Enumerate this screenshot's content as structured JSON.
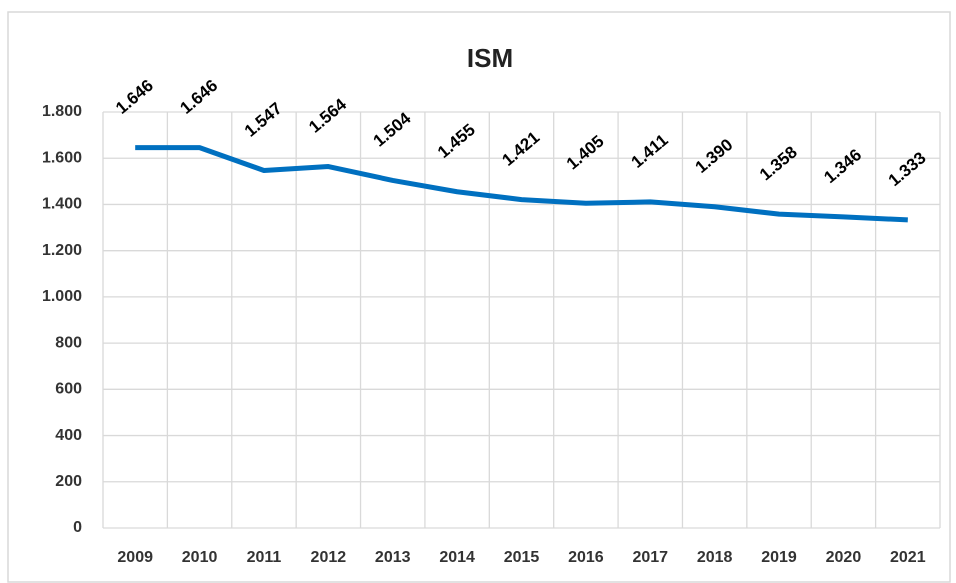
{
  "chart_data": {
    "type": "line",
    "title": "ISM",
    "categories": [
      "2009",
      "2010",
      "2011",
      "2012",
      "2013",
      "2014",
      "2015",
      "2016",
      "2017",
      "2018",
      "2019",
      "2020",
      "2021"
    ],
    "series": [
      {
        "name": "ISM",
        "color": "#0070c0",
        "values": [
          1646,
          1646,
          1547,
          1564,
          1504,
          1455,
          1421,
          1405,
          1411,
          1390,
          1358,
          1346,
          1333
        ],
        "value_labels": [
          "1.646",
          "1.646",
          "1.547",
          "1.564",
          "1.504",
          "1.455",
          "1.421",
          "1.405",
          "1.411",
          "1.390",
          "1.358",
          "1.346",
          "1.333"
        ]
      }
    ],
    "ylim": [
      0,
      1800
    ],
    "yticks": [
      0,
      200,
      400,
      600,
      800,
      {
        "value": 1000,
        "label": "1.000"
      },
      {
        "value": 1200,
        "label": "1.200"
      },
      {
        "value": 1400,
        "label": "1.400"
      },
      {
        "value": 1600,
        "label": "1.600"
      },
      {
        "value": 1800,
        "label": "1.800"
      }
    ],
    "grid": true
  }
}
